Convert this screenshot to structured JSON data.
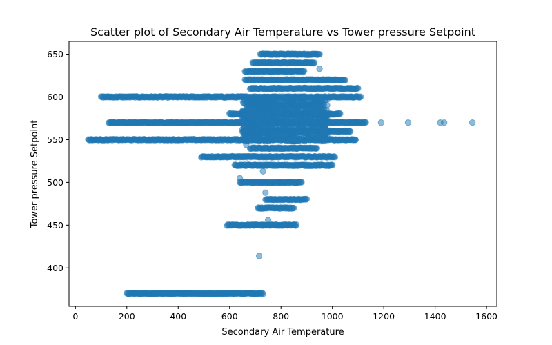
{
  "chart_data": {
    "type": "scatter",
    "title": "Scatter plot of Secondary Air Temperature vs Tower pressure Setpoint",
    "xlabel": "Secondary Air Temperature",
    "ylabel": "Tower pressure Setpoint",
    "xlim": [
      -25,
      1640
    ],
    "ylim": [
      355,
      665
    ],
    "xticks": [
      0,
      200,
      400,
      600,
      800,
      1000,
      1200,
      1400,
      1600
    ],
    "yticks": [
      400,
      450,
      500,
      550,
      600,
      650
    ],
    "grid": false,
    "marker_color": "#1f77b4",
    "marker_alpha": 0.5,
    "bands": [
      {
        "y": 650,
        "xmin": 720,
        "xmax": 950
      },
      {
        "y": 640,
        "xmin": 690,
        "xmax": 930
      },
      {
        "y": 630,
        "xmin": 660,
        "xmax": 890
      },
      {
        "y": 620,
        "xmin": 660,
        "xmax": 1050
      },
      {
        "y": 610,
        "xmin": 680,
        "xmax": 1100
      },
      {
        "y": 600,
        "xmin": 100,
        "xmax": 1110
      },
      {
        "y": 590,
        "xmin": 680,
        "xmax": 940
      },
      {
        "y": 580,
        "xmin": 600,
        "xmax": 1030
      },
      {
        "y": 570,
        "xmin": 130,
        "xmax": 1130
      },
      {
        "y": 560,
        "xmin": 650,
        "xmax": 1070
      },
      {
        "y": 550,
        "xmin": 50,
        "xmax": 1090
      },
      {
        "y": 540,
        "xmin": 680,
        "xmax": 940
      },
      {
        "y": 530,
        "xmin": 490,
        "xmax": 1010
      },
      {
        "y": 520,
        "xmin": 620,
        "xmax": 1000
      },
      {
        "y": 500,
        "xmin": 640,
        "xmax": 880
      },
      {
        "y": 480,
        "xmin": 740,
        "xmax": 900
      },
      {
        "y": 470,
        "xmin": 710,
        "xmax": 850
      },
      {
        "y": 450,
        "xmin": 590,
        "xmax": 860
      },
      {
        "y": 370,
        "xmin": 200,
        "xmax": 730
      }
    ],
    "dense_regions": [
      {
        "xmin": 650,
        "xmax": 980,
        "ymin": 548,
        "ymax": 600
      }
    ],
    "outliers": [
      {
        "x": 1190,
        "y": 570
      },
      {
        "x": 1295,
        "y": 570
      },
      {
        "x": 1420,
        "y": 570
      },
      {
        "x": 1435,
        "y": 570
      },
      {
        "x": 1545,
        "y": 570
      },
      {
        "x": 1090,
        "y": 550
      },
      {
        "x": 1085,
        "y": 570
      },
      {
        "x": 715,
        "y": 414
      },
      {
        "x": 740,
        "y": 488
      },
      {
        "x": 750,
        "y": 456
      },
      {
        "x": 640,
        "y": 505
      },
      {
        "x": 950,
        "y": 633
      },
      {
        "x": 730,
        "y": 513
      },
      {
        "x": 665,
        "y": 544
      }
    ]
  }
}
